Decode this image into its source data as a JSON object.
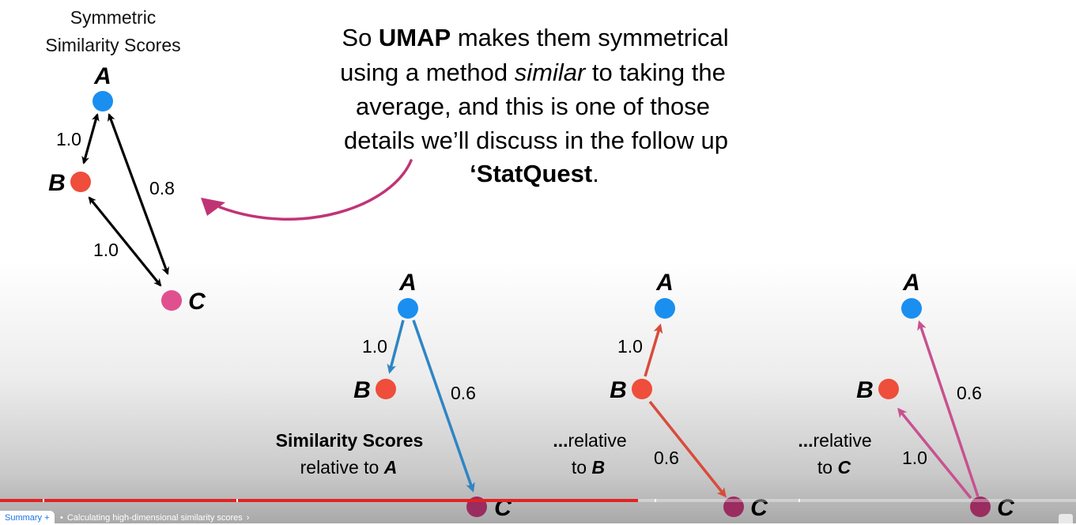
{
  "top_left": {
    "title_line1": "Symmetric",
    "title_line2": "Similarity Scores",
    "node_a": "A",
    "node_b": "B",
    "node_c": "C",
    "weight_ab": "1.0",
    "weight_ac": "0.8",
    "weight_bc": "1.0"
  },
  "callout": {
    "line1_pre": "So ",
    "line1_bold": "UMAP",
    "line1_post": " makes them symmetrical",
    "line2_pre": "using a method ",
    "line2_italic": "similar",
    "line2_post": " to taking the",
    "line3": "average, and this is one of those",
    "line4": "details we’ll discuss in the follow up",
    "line5_bold": "‘StatQuest",
    "line5_post": "."
  },
  "graph_a": {
    "node_a": "A",
    "node_b": "B",
    "node_c": "C",
    "weight_ab": "1.0",
    "weight_ac": "0.6",
    "caption_bold": "Similarity Scores",
    "caption_rel": "relative to ",
    "caption_node": "A"
  },
  "graph_b": {
    "node_a": "A",
    "node_b": "B",
    "node_c": "C",
    "weight_ba": "1.0",
    "weight_bc": "0.6",
    "caption_dots": "...",
    "caption_word": "relative",
    "caption_to": "to ",
    "caption_node": "B"
  },
  "graph_c": {
    "node_a": "A",
    "node_b": "B",
    "node_c": "C",
    "weight_cb": "1.0",
    "weight_ca": "0.6",
    "caption_dots": "...",
    "caption_word": "relative",
    "caption_to": "to ",
    "caption_node": "C"
  },
  "player": {
    "summary_label": "Summary +",
    "chapter_title": "Calculating high-dimensional similarity scores",
    "chapter_dot": "•",
    "chapter_chevron": "›",
    "progress_fraction": 0.593
  },
  "colors": {
    "node_a": "#1a8ff0",
    "node_b": "#ee4e3b",
    "node_c_top": "#e0508f",
    "node_c_bottom": "#9a2c60",
    "edge_black": "#000000",
    "edge_blue": "#2f85c4",
    "edge_red": "#d84b3c",
    "edge_pink": "#c85190",
    "callout_arrow": "#c03476",
    "progress_red": "#e52222"
  }
}
